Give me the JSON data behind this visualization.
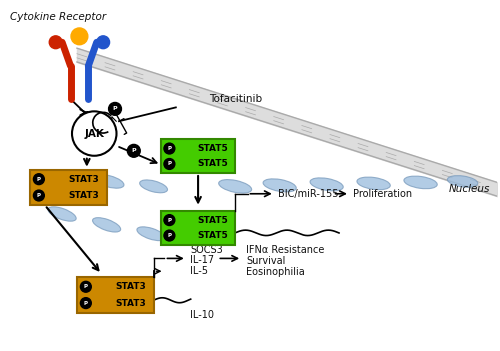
{
  "bg_color": "#ffffff",
  "cytokine_receptor_label": "Cytokine Receptor",
  "jak_label": "JAK",
  "tofacitinib_label": "Tofacitinib",
  "nucleus_label": "Nucleus",
  "stat5_label": "STAT5",
  "stat3_label": "STAT3",
  "p_label": "P",
  "bic_label": "BIC/miR-155",
  "prolif_label": "Proliferation",
  "socs3_label": "SOCS3",
  "il17_label": "IL-17",
  "il5_label": "IL-5",
  "il10_label": "IL-10",
  "ifna_label": "IFNα Resistance",
  "survival_label": "Survival",
  "eosino_label": "Eosinophilia",
  "green_color": "#44cc00",
  "gold_color": "#cc8800",
  "receptor_red": "#cc2200",
  "receptor_blue": "#2255cc",
  "receptor_gold": "#ffaa00",
  "ellipse_color": "#99bbdd",
  "text_color": "#111111"
}
